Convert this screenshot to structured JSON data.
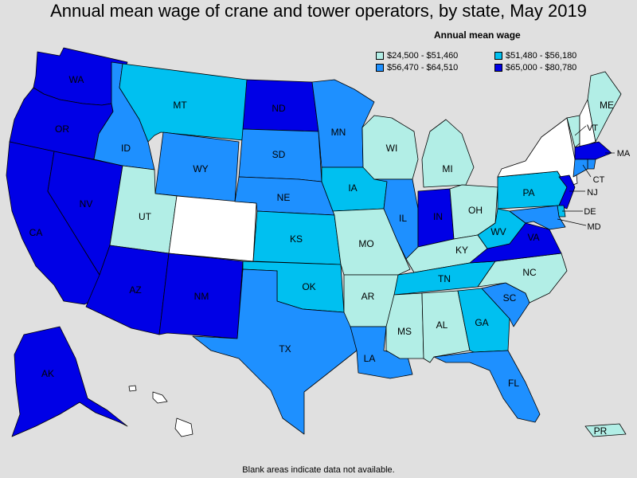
{
  "title": "Annual mean wage of crane and tower operators, by state, May 2019",
  "legend": {
    "title": "Annual mean wage",
    "items": [
      {
        "label": "$24,500 - $51,460",
        "color": "#b2eee6"
      },
      {
        "label": "$51,480 - $56,180",
        "color": "#00c0f0"
      },
      {
        "label": "$56,470 - $64,510",
        "color": "#1e90ff"
      },
      {
        "label": "$65,000 - $80,780",
        "color": "#0000e6"
      }
    ]
  },
  "footnote": "Blank areas indicate data not available.",
  "no_data_color": "#ffffff",
  "states": {
    "WA": {
      "label": "WA",
      "bin": 3
    },
    "OR": {
      "label": "OR",
      "bin": 3
    },
    "CA": {
      "label": "CA",
      "bin": 3
    },
    "NV": {
      "label": "NV",
      "bin": 3
    },
    "ID": {
      "label": "ID",
      "bin": 2
    },
    "MT": {
      "label": "MT",
      "bin": 1
    },
    "WY": {
      "label": "WY",
      "bin": 2
    },
    "UT": {
      "label": "UT",
      "bin": 0
    },
    "CO": {
      "label": "",
      "bin": null
    },
    "AZ": {
      "label": "AZ",
      "bin": 3
    },
    "NM": {
      "label": "NM",
      "bin": 3
    },
    "ND": {
      "label": "ND",
      "bin": 3
    },
    "SD": {
      "label": "SD",
      "bin": 2
    },
    "NE": {
      "label": "NE",
      "bin": 2
    },
    "KS": {
      "label": "KS",
      "bin": 1
    },
    "OK": {
      "label": "OK",
      "bin": 1
    },
    "TX": {
      "label": "TX",
      "bin": 2
    },
    "MN": {
      "label": "MN",
      "bin": 2
    },
    "IA": {
      "label": "IA",
      "bin": 1
    },
    "MO": {
      "label": "MO",
      "bin": 0
    },
    "AR": {
      "label": "AR",
      "bin": 0
    },
    "LA": {
      "label": "LA",
      "bin": 2
    },
    "WI": {
      "label": "WI",
      "bin": 0
    },
    "IL": {
      "label": "IL",
      "bin": 2
    },
    "MI": {
      "label": "MI",
      "bin": 0
    },
    "IN": {
      "label": "IN",
      "bin": 3
    },
    "OH": {
      "label": "OH",
      "bin": 0
    },
    "KY": {
      "label": "KY",
      "bin": 0
    },
    "TN": {
      "label": "TN",
      "bin": 1
    },
    "MS": {
      "label": "MS",
      "bin": 0
    },
    "AL": {
      "label": "AL",
      "bin": 0
    },
    "GA": {
      "label": "GA",
      "bin": 1
    },
    "FL": {
      "label": "FL",
      "bin": 2
    },
    "SC": {
      "label": "SC",
      "bin": 2
    },
    "NC": {
      "label": "NC",
      "bin": 0
    },
    "VA": {
      "label": "VA",
      "bin": 3
    },
    "WV": {
      "label": "WV",
      "bin": 1
    },
    "PA": {
      "label": "PA",
      "bin": 1
    },
    "NY": {
      "label": "",
      "bin": null
    },
    "VT": {
      "label": "VT",
      "bin": 0
    },
    "NH": {
      "label": "",
      "bin": null
    },
    "ME": {
      "label": "ME",
      "bin": 0
    },
    "MA": {
      "label": "MA",
      "bin": 3
    },
    "RI": {
      "label": "",
      "bin": 2
    },
    "CT": {
      "label": "CT",
      "bin": 2
    },
    "NJ": {
      "label": "NJ",
      "bin": 3
    },
    "DE": {
      "label": "DE",
      "bin": 1
    },
    "MD": {
      "label": "MD",
      "bin": 2
    },
    "AK": {
      "label": "AK",
      "bin": 3
    },
    "HI": {
      "label": "",
      "bin": null
    },
    "PR": {
      "label": "PR",
      "bin": 0
    }
  }
}
